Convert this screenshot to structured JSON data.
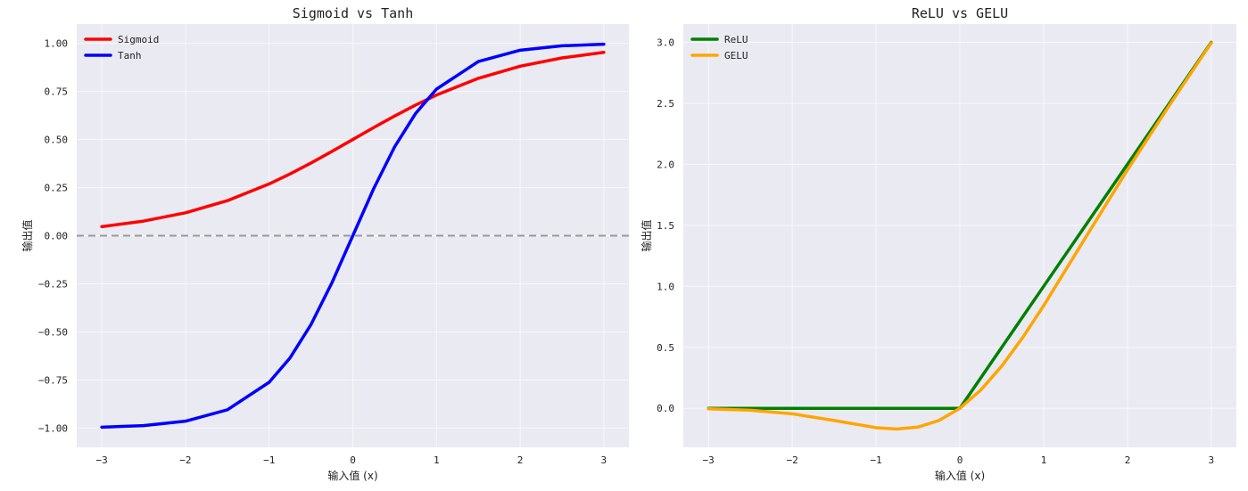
{
  "chart_data": [
    {
      "type": "line",
      "title": "Sigmoid vs Tanh",
      "xlabel": "输入值 (x)",
      "ylabel": "输出值",
      "xlim": [
        -3.3,
        3.3
      ],
      "ylim": [
        -1.1,
        1.1
      ],
      "x_ticks": [
        -3,
        -2,
        -1,
        0,
        1,
        2,
        3
      ],
      "y_ticks": [
        -1.0,
        -0.75,
        -0.5,
        -0.25,
        0.0,
        0.25,
        0.5,
        0.75,
        1.0
      ],
      "x_tick_labels": [
        "−3",
        "−2",
        "−1",
        "0",
        "1",
        "2",
        "3"
      ],
      "y_tick_labels": [
        "−1.00",
        "−0.75",
        "−0.50",
        "−0.25",
        "0.00",
        "0.25",
        "0.50",
        "0.75",
        "1.00"
      ],
      "grid": true,
      "legend": "top-left",
      "reference_line": {
        "y": 0,
        "style": "dashed",
        "color": "#999999"
      },
      "x": [
        -3.0,
        -2.5,
        -2.0,
        -1.5,
        -1.0,
        -0.75,
        -0.5,
        -0.25,
        0.0,
        0.25,
        0.5,
        0.75,
        1.0,
        1.5,
        2.0,
        2.5,
        3.0
      ],
      "series": [
        {
          "name": "Sigmoid",
          "color": "#ff0000",
          "values": [
            0.047,
            0.076,
            0.119,
            0.182,
            0.269,
            0.321,
            0.378,
            0.438,
            0.5,
            0.562,
            0.622,
            0.679,
            0.731,
            0.818,
            0.881,
            0.924,
            0.953
          ]
        },
        {
          "name": "Tanh",
          "color": "#0000ff",
          "values": [
            -0.995,
            -0.987,
            -0.964,
            -0.905,
            -0.762,
            -0.635,
            -0.462,
            -0.245,
            0.0,
            0.245,
            0.462,
            0.635,
            0.762,
            0.905,
            0.964,
            0.987,
            0.995
          ]
        }
      ]
    },
    {
      "type": "line",
      "title": "ReLU vs GELU",
      "xlabel": "输入值 (x)",
      "ylabel": "输出值",
      "xlim": [
        -3.3,
        3.3
      ],
      "ylim": [
        -0.32,
        3.15
      ],
      "x_ticks": [
        -3,
        -2,
        -1,
        0,
        1,
        2,
        3
      ],
      "y_ticks": [
        0.0,
        0.5,
        1.0,
        1.5,
        2.0,
        2.5,
        3.0
      ],
      "x_tick_labels": [
        "−3",
        "−2",
        "−1",
        "0",
        "1",
        "2",
        "3"
      ],
      "y_tick_labels": [
        "0.0",
        "0.5",
        "1.0",
        "1.5",
        "2.0",
        "2.5",
        "3.0"
      ],
      "grid": true,
      "legend": "top-left",
      "x": [
        -3.0,
        -2.5,
        -2.0,
        -1.5,
        -1.0,
        -0.75,
        -0.5,
        -0.25,
        0.0,
        0.25,
        0.5,
        0.75,
        1.0,
        1.5,
        2.0,
        2.5,
        3.0
      ],
      "series": [
        {
          "name": "ReLU",
          "color": "#008000",
          "values": [
            0.0,
            0.0,
            0.0,
            0.0,
            0.0,
            0.0,
            0.0,
            0.0,
            0.0,
            0.25,
            0.5,
            0.75,
            1.0,
            1.5,
            2.0,
            2.5,
            3.0
          ]
        },
        {
          "name": "GELU",
          "color": "#ffa500",
          "values": [
            -0.004,
            -0.016,
            -0.045,
            -0.1,
            -0.159,
            -0.17,
            -0.154,
            -0.1,
            0.0,
            0.15,
            0.346,
            0.58,
            0.841,
            1.4,
            1.955,
            2.484,
            2.996
          ]
        }
      ]
    }
  ]
}
